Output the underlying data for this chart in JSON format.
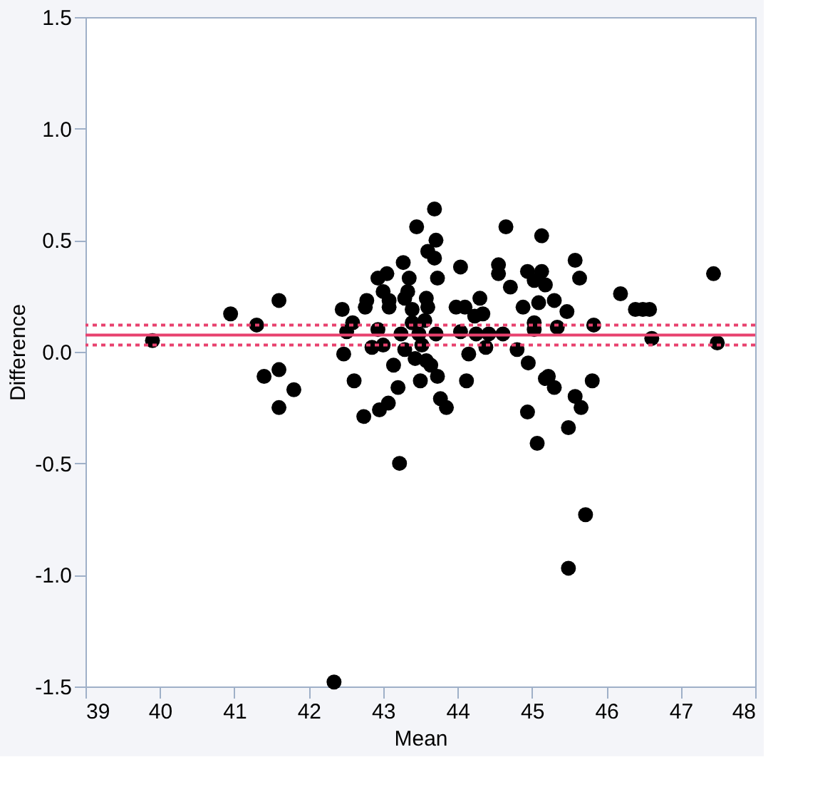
{
  "chart_data": {
    "type": "scatter",
    "xlabel": "Mean",
    "ylabel": "Difference",
    "xlim": [
      39,
      48
    ],
    "ylim": [
      -1.5,
      1.5
    ],
    "xticks": [
      39,
      40,
      41,
      42,
      43,
      44,
      45,
      46,
      47,
      48
    ],
    "yticks": [
      {
        "value": -1.5,
        "label": "-1.5"
      },
      {
        "value": -1.0,
        "label": "-1.0"
      },
      {
        "value": -0.5,
        "label": "-0.5"
      },
      {
        "value": 0,
        "label": "0.0"
      },
      {
        "value": 0.5,
        "label": "0.5"
      },
      {
        "value": 1.0,
        "label": "1.0"
      },
      {
        "value": 1.5,
        "label": "1.5"
      }
    ],
    "grid": false,
    "marker": "circle",
    "ref_lines": [
      {
        "axis": "y",
        "value": 0.075,
        "color": "#e8416e",
        "line_style": "solid"
      },
      {
        "axis": "y",
        "value": 0.12,
        "color": "#e8416e",
        "line_style": "dotted"
      },
      {
        "axis": "y",
        "value": 0.03,
        "color": "#e8416e",
        "line_style": "dotted"
      }
    ],
    "series": [
      {
        "color": "#000000",
        "x": [
          39.9,
          40.95,
          41.3,
          41.4,
          41.6,
          41.6,
          41.8,
          41.6,
          43.69,
          43.45,
          44.65,
          45.13,
          43.71,
          43.6,
          43.69,
          43.27,
          44.04,
          44.55,
          44.55,
          42.93,
          43.05,
          43.35,
          43.73,
          44.94,
          45.13,
          45.18,
          44.71,
          43.0,
          43.33,
          43.58,
          42.78,
          43.08,
          43.29,
          44.3,
          45.09,
          44.88,
          42.45,
          42.76,
          43.08,
          43.39,
          43.6,
          43.98,
          44.1,
          44.34,
          44.23,
          42.59,
          43.39,
          43.56,
          45.03,
          42.51,
          42.93,
          43.24,
          43.48,
          43.71,
          44.04,
          44.25,
          44.42,
          44.61,
          45.03,
          42.85,
          43.0,
          43.29,
          43.52,
          44.38,
          44.8,
          42.47,
          43.43,
          43.58,
          44.15,
          43.64,
          43.14,
          44.95,
          42.61,
          43.2,
          43.5,
          43.73,
          44.12,
          45.18,
          43.77,
          43.85,
          43.07,
          42.95,
          42.74,
          44.94,
          45.07,
          43.22,
          45.58,
          45.64,
          45.03,
          46.19,
          45.3,
          45.47,
          46.39,
          46.49,
          46.58,
          47.44,
          45.34,
          45.83,
          46.61,
          47.49,
          45.22,
          45.3,
          45.81,
          45.58,
          45.66,
          45.49,
          45.72,
          45.49,
          42.34
        ],
        "values": [
          0.05,
          0.17,
          0.12,
          -0.11,
          0.23,
          -0.08,
          -0.17,
          -0.25,
          0.64,
          0.56,
          0.56,
          0.52,
          0.5,
          0.45,
          0.42,
          0.4,
          0.38,
          0.39,
          0.35,
          0.33,
          0.35,
          0.33,
          0.33,
          0.36,
          0.36,
          0.3,
          0.29,
          0.27,
          0.27,
          0.24,
          0.23,
          0.23,
          0.24,
          0.24,
          0.22,
          0.2,
          0.19,
          0.2,
          0.2,
          0.19,
          0.2,
          0.2,
          0.2,
          0.17,
          0.16,
          0.13,
          0.13,
          0.14,
          0.13,
          0.09,
          0.1,
          0.08,
          0.08,
          0.08,
          0.09,
          0.08,
          0.08,
          0.08,
          0.1,
          0.02,
          0.03,
          0.01,
          0.03,
          0.02,
          0.01,
          -0.01,
          -0.03,
          -0.04,
          -0.01,
          -0.06,
          -0.06,
          -0.05,
          -0.13,
          -0.16,
          -0.13,
          -0.11,
          -0.13,
          -0.12,
          -0.21,
          -0.25,
          -0.23,
          -0.26,
          -0.29,
          -0.27,
          -0.41,
          -0.5,
          0.41,
          0.33,
          0.32,
          0.26,
          0.23,
          0.18,
          0.19,
          0.19,
          0.19,
          0.35,
          0.11,
          0.12,
          0.06,
          0.04,
          -0.11,
          -0.16,
          -0.13,
          -0.2,
          -0.25,
          -0.34,
          -0.73,
          -0.97,
          -1.48
        ]
      }
    ]
  }
}
